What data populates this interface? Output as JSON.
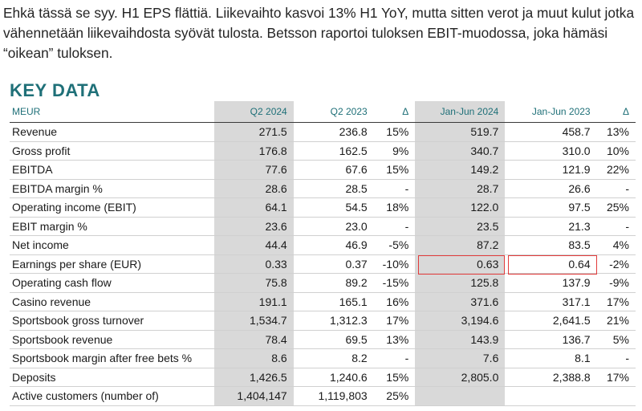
{
  "intro_text": "Ehkä tässä se syy. H1 EPS flättiä. Liikevaihto kasvoi 13% H1 YoY, mutta sitten verot ja muut kulut jotka vähennetään liikevaihdosta syövät tulosta. Betsson raportoi tuloksen EBIT-muodossa, joka hämäsi “oikean” tuloksen.",
  "section_title": "KEY DATA",
  "table": {
    "headers": [
      "MEUR",
      "Q2 2024",
      "Q2 2023",
      "Δ",
      "Jan-Jun 2024",
      "Jan-Jun 2023",
      "Δ"
    ],
    "rows": [
      [
        "Revenue",
        "271.5",
        "236.8",
        "15%",
        "519.7",
        "458.7",
        "13%"
      ],
      [
        "Gross profit",
        "176.8",
        "162.5",
        "9%",
        "340.7",
        "310.0",
        "10%"
      ],
      [
        "EBITDA",
        "77.6",
        "67.6",
        "15%",
        "149.2",
        "121.9",
        "22%"
      ],
      [
        "EBITDA margin %",
        "28.6",
        "28.5",
        "-",
        "28.7",
        "26.6",
        "-"
      ],
      [
        "Operating income (EBIT)",
        "64.1",
        "54.5",
        "18%",
        "122.0",
        "97.5",
        "25%"
      ],
      [
        "EBIT margin %",
        "23.6",
        "23.0",
        "-",
        "23.5",
        "21.3",
        "-"
      ],
      [
        "Net income",
        "44.4",
        "46.9",
        "-5%",
        "87.2",
        "83.5",
        "4%"
      ],
      [
        "Earnings per share (EUR)",
        "0.33",
        "0.37",
        "-10%",
        "0.63",
        "0.64",
        "-2%"
      ],
      [
        "Operating cash flow",
        "75.8",
        "89.2",
        "-15%",
        "125.8",
        "137.9",
        "-9%"
      ],
      [
        "Casino revenue",
        "191.1",
        "165.1",
        "16%",
        "371.6",
        "317.1",
        "17%"
      ],
      [
        "Sportsbook gross turnover",
        "1,534.7",
        "1,312.3",
        "17%",
        "3,194.6",
        "2,641.5",
        "21%"
      ],
      [
        "Sportsbook revenue",
        "78.4",
        "69.5",
        "13%",
        "143.9",
        "136.7",
        "5%"
      ],
      [
        "Sportsbook margin after free bets %",
        "8.6",
        "8.2",
        "-",
        "7.6",
        "8.1",
        "-"
      ],
      [
        "Deposits",
        "1,426.5",
        "1,240.6",
        "15%",
        "2,805.0",
        "2,388.8",
        "17%"
      ],
      [
        "Active customers (number of)",
        "1,404,147",
        "1,119,803",
        "25%",
        "",
        "",
        ""
      ]
    ]
  },
  "colors": {
    "title": "#1f7078",
    "shade": "#d9d9d9",
    "highlight": "#e23b3b"
  }
}
